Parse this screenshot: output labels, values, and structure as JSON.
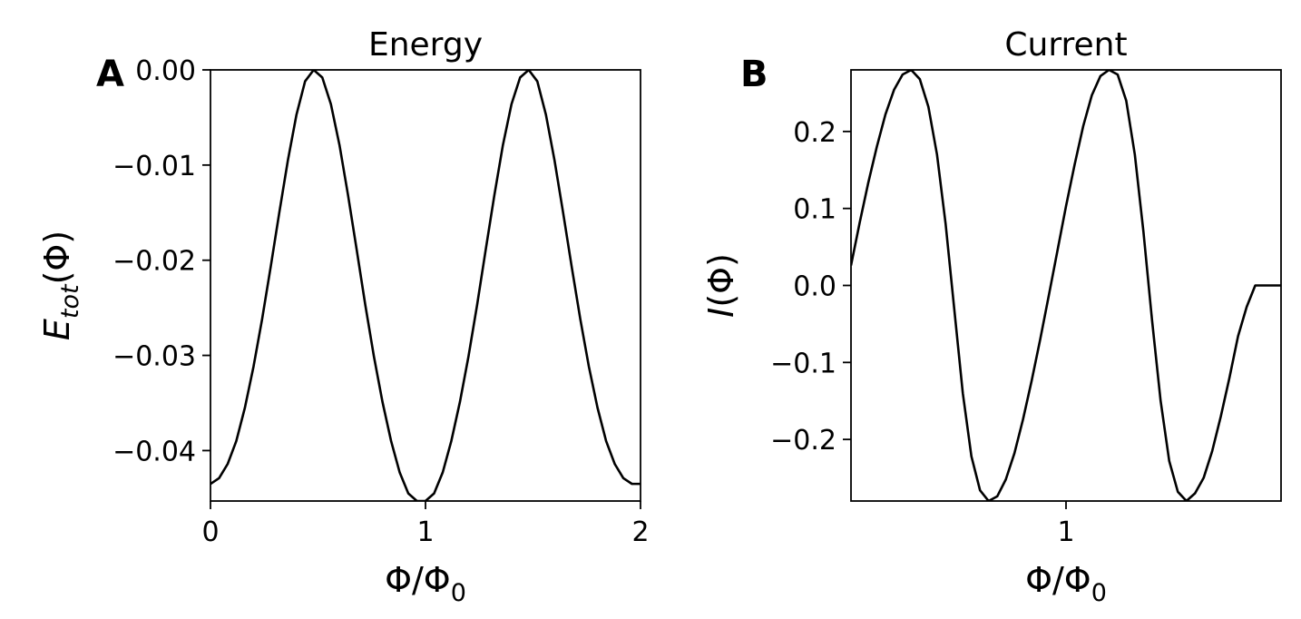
{
  "chart_data": [
    {
      "type": "line",
      "panel_label": "A",
      "title": "Energy",
      "xlabel": "Φ/Φ",
      "xlabel_sub": "0",
      "ylabel": "E",
      "ylabel_sub": "tot",
      "ylabel_suffix": "(Φ)",
      "xlim": [
        0,
        2
      ],
      "ylim": [
        -0.0453,
        0.0
      ],
      "xticks": [
        0,
        1,
        2
      ],
      "xtick_labels": [
        "0",
        "1",
        "2"
      ],
      "yticks": [
        0.0,
        -0.01,
        -0.02,
        -0.03,
        -0.04
      ],
      "ytick_labels": [
        "0.00",
        "−0.01",
        "−0.02",
        "−0.03",
        "−0.04"
      ],
      "grid": false,
      "series": [
        {
          "color": "#000000",
          "x": [
            0.0,
            0.04,
            0.08,
            0.12,
            0.16,
            0.2,
            0.24,
            0.28,
            0.32,
            0.36,
            0.4,
            0.44,
            0.48,
            0.52,
            0.56,
            0.6,
            0.64,
            0.68,
            0.72,
            0.76,
            0.8,
            0.84,
            0.88,
            0.92,
            0.96,
            1.0,
            1.04,
            1.08,
            1.12,
            1.16,
            1.2,
            1.24,
            1.28,
            1.32,
            1.36,
            1.4,
            1.44,
            1.48,
            1.52,
            1.56,
            1.6,
            1.64,
            1.68,
            1.72,
            1.76,
            1.8,
            1.84,
            1.88,
            1.92,
            1.96,
            2.0
          ],
          "y": [
            -0.0435,
            -0.0429,
            -0.0414,
            -0.039,
            -0.0355,
            -0.0312,
            -0.0262,
            -0.0207,
            -0.015,
            -0.0095,
            -0.0047,
            -0.0012,
            0.0,
            -0.0008,
            -0.0036,
            -0.0079,
            -0.0132,
            -0.0189,
            -0.0247,
            -0.0301,
            -0.0349,
            -0.039,
            -0.0423,
            -0.0445,
            -0.0453,
            -0.0453,
            -0.0445,
            -0.0423,
            -0.039,
            -0.0349,
            -0.0301,
            -0.0247,
            -0.0189,
            -0.0132,
            -0.0079,
            -0.0036,
            -0.0008,
            0.0,
            -0.0012,
            -0.0047,
            -0.0095,
            -0.015,
            -0.0207,
            -0.0262,
            -0.0312,
            -0.0355,
            -0.039,
            -0.0414,
            -0.0429,
            -0.0435,
            -0.0435
          ]
        }
      ]
    },
    {
      "type": "line",
      "panel_label": "B",
      "title": "Current",
      "xlabel": "Φ/Φ",
      "xlabel_sub": "0",
      "ylabel": "I",
      "ylabel_suffix": "(Φ)",
      "xlim": [
        0.0,
        2.0
      ],
      "ylim": [
        -0.28,
        0.28
      ],
      "xticks": [
        1
      ],
      "xtick_labels": [
        "1"
      ],
      "yticks": [
        0.2,
        0.1,
        0.0,
        -0.1,
        -0.2
      ],
      "ytick_labels": [
        "0.2",
        "0.1",
        "0.0",
        "−0.1",
        "−0.2"
      ],
      "grid": false,
      "series": [
        {
          "color": "#000000",
          "x": [
            0.0,
            0.04,
            0.08,
            0.12,
            0.16,
            0.2,
            0.24,
            0.28,
            0.32,
            0.36,
            0.4,
            0.44,
            0.48,
            0.52,
            0.56,
            0.6,
            0.64,
            0.68,
            0.72,
            0.76,
            0.8,
            0.84,
            0.88,
            0.92,
            0.96,
            1.0,
            1.04,
            1.08,
            1.12,
            1.16,
            1.2,
            1.24,
            1.28,
            1.32,
            1.36,
            1.4,
            1.44,
            1.48,
            1.52,
            1.56,
            1.6,
            1.64,
            1.68,
            1.72,
            1.76,
            1.8,
            1.84,
            1.88,
            1.92,
            1.96,
            2.0
          ],
          "y": [
            0.026,
            0.081,
            0.133,
            0.18,
            0.222,
            0.254,
            0.274,
            0.28,
            0.268,
            0.232,
            0.17,
            0.08,
            -0.03,
            -0.14,
            -0.222,
            -0.266,
            -0.28,
            -0.274,
            -0.252,
            -0.218,
            -0.174,
            -0.124,
            -0.07,
            -0.013,
            0.045,
            0.103,
            0.157,
            0.207,
            0.247,
            0.272,
            0.28,
            0.274,
            0.24,
            0.17,
            0.07,
            -0.045,
            -0.15,
            -0.228,
            -0.268,
            -0.28,
            -0.27,
            -0.25,
            -0.215,
            -0.17,
            -0.12,
            -0.066,
            -0.028,
            0.0,
            0.0,
            0.0,
            0.0
          ]
        }
      ]
    }
  ]
}
